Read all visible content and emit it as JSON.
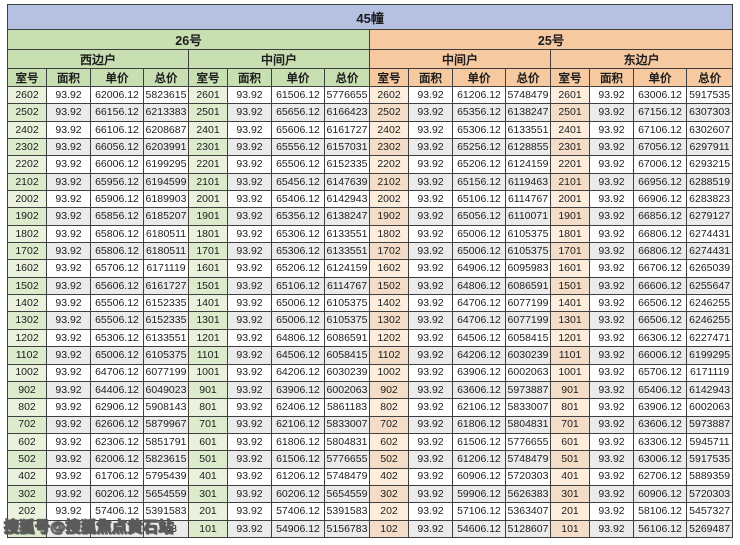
{
  "title": "45幢",
  "watermark": "搜狐号@搜狐焦点黄石站",
  "columns": [
    "室号",
    "面积",
    "单价",
    "总价"
  ],
  "colors": {
    "title_bar": "#b6c0e0",
    "building_26": "#c8dfb2",
    "building_25": "#f7c9a1"
  },
  "buildings": [
    {
      "name": "26号",
      "wings": [
        {
          "name": "西边户",
          "rows": [
            [
              "2602",
              "93.92",
              "62006.12",
              "5823615"
            ],
            [
              "2502",
              "93.92",
              "66156.12",
              "6213383"
            ],
            [
              "2402",
              "93.92",
              "66106.12",
              "6208687"
            ],
            [
              "2302",
              "93.92",
              "66056.12",
              "6203991"
            ],
            [
              "2202",
              "93.92",
              "66006.12",
              "6199295"
            ],
            [
              "2102",
              "93.92",
              "65956.12",
              "6194599"
            ],
            [
              "2002",
              "93.92",
              "65906.12",
              "6189903"
            ],
            [
              "1902",
              "93.92",
              "65856.12",
              "6185207"
            ],
            [
              "1802",
              "93.92",
              "65806.12",
              "6180511"
            ],
            [
              "1702",
              "93.92",
              "65806.12",
              "6180511"
            ],
            [
              "1602",
              "93.92",
              "65706.12",
              "6171119"
            ],
            [
              "1502",
              "93.92",
              "65606.12",
              "6161727"
            ],
            [
              "1402",
              "93.92",
              "65506.12",
              "6152335"
            ],
            [
              "1302",
              "93.92",
              "65506.12",
              "6152335"
            ],
            [
              "1202",
              "93.92",
              "65306.12",
              "6133551"
            ],
            [
              "1102",
              "93.92",
              "65006.12",
              "6105375"
            ],
            [
              "1002",
              "93.92",
              "64706.12",
              "6077199"
            ],
            [
              "902",
              "93.92",
              "64406.12",
              "6049023"
            ],
            [
              "802",
              "93.92",
              "62906.12",
              "5908143"
            ],
            [
              "702",
              "93.92",
              "62606.12",
              "5879967"
            ],
            [
              "602",
              "93.92",
              "62306.12",
              "5851791"
            ],
            [
              "502",
              "93.92",
              "62006.12",
              "5823615"
            ],
            [
              "402",
              "93.92",
              "61706.12",
              "5795439"
            ],
            [
              "302",
              "93.92",
              "60206.12",
              "5654559"
            ],
            [
              "202",
              "93.92",
              "57406.12",
              "5391583"
            ],
            [
              "",
              "",
              "",
              "743"
            ]
          ]
        },
        {
          "name": "中间户",
          "rows": [
            [
              "2601",
              "93.92",
              "61506.12",
              "5776655"
            ],
            [
              "2501",
              "93.92",
              "65656.12",
              "6166423"
            ],
            [
              "2401",
              "93.92",
              "65606.12",
              "6161727"
            ],
            [
              "2301",
              "93.92",
              "65556.12",
              "6157031"
            ],
            [
              "2201",
              "93.92",
              "65506.12",
              "6152335"
            ],
            [
              "2101",
              "93.92",
              "65456.12",
              "6147639"
            ],
            [
              "2001",
              "93.92",
              "65406.12",
              "6142943"
            ],
            [
              "1901",
              "93.92",
              "65356.12",
              "6138247"
            ],
            [
              "1801",
              "93.92",
              "65306.12",
              "6133551"
            ],
            [
              "1701",
              "93.92",
              "65306.12",
              "6133551"
            ],
            [
              "1601",
              "93.92",
              "65206.12",
              "6124159"
            ],
            [
              "1501",
              "93.92",
              "65106.12",
              "6114767"
            ],
            [
              "1401",
              "93.92",
              "65006.12",
              "6105375"
            ],
            [
              "1301",
              "93.92",
              "65006.12",
              "6105375"
            ],
            [
              "1201",
              "93.92",
              "64806.12",
              "6086591"
            ],
            [
              "1101",
              "93.92",
              "64506.12",
              "6058415"
            ],
            [
              "1001",
              "93.92",
              "64206.12",
              "6030239"
            ],
            [
              "901",
              "93.92",
              "63906.12",
              "6002063"
            ],
            [
              "801",
              "93.92",
              "62406.12",
              "5861183"
            ],
            [
              "701",
              "93.92",
              "62106.12",
              "5833007"
            ],
            [
              "601",
              "93.92",
              "61806.12",
              "5804831"
            ],
            [
              "501",
              "93.92",
              "61506.12",
              "5776655"
            ],
            [
              "401",
              "93.92",
              "61206.12",
              "5748479"
            ],
            [
              "301",
              "93.92",
              "60206.12",
              "5654559"
            ],
            [
              "201",
              "93.92",
              "57406.12",
              "5391583"
            ],
            [
              "101",
              "93.92",
              "54906.12",
              "5156783"
            ]
          ]
        }
      ]
    },
    {
      "name": "25号",
      "wings": [
        {
          "name": "中间户",
          "rows": [
            [
              "2602",
              "93.92",
              "61206.12",
              "5748479"
            ],
            [
              "2502",
              "93.92",
              "65356.12",
              "6138247"
            ],
            [
              "2402",
              "93.92",
              "65306.12",
              "6133551"
            ],
            [
              "2302",
              "93.92",
              "65256.12",
              "6128855"
            ],
            [
              "2202",
              "93.92",
              "65206.12",
              "6124159"
            ],
            [
              "2102",
              "93.92",
              "65156.12",
              "6119463"
            ],
            [
              "2002",
              "93.92",
              "65106.12",
              "6114767"
            ],
            [
              "1902",
              "93.92",
              "65056.12",
              "6110071"
            ],
            [
              "1802",
              "93.92",
              "65006.12",
              "6105375"
            ],
            [
              "1702",
              "93.92",
              "65006.12",
              "6105375"
            ],
            [
              "1602",
              "93.92",
              "64906.12",
              "6095983"
            ],
            [
              "1502",
              "93.92",
              "64806.12",
              "6086591"
            ],
            [
              "1402",
              "93.92",
              "64706.12",
              "6077199"
            ],
            [
              "1302",
              "93.92",
              "64706.12",
              "6077199"
            ],
            [
              "1202",
              "93.92",
              "64506.12",
              "6058415"
            ],
            [
              "1102",
              "93.92",
              "64206.12",
              "6030239"
            ],
            [
              "1002",
              "93.92",
              "63906.12",
              "6002063"
            ],
            [
              "902",
              "93.92",
              "63606.12",
              "5973887"
            ],
            [
              "802",
              "93.92",
              "62106.12",
              "5833007"
            ],
            [
              "702",
              "93.92",
              "61806.12",
              "5804831"
            ],
            [
              "602",
              "93.92",
              "61506.12",
              "5776655"
            ],
            [
              "502",
              "93.92",
              "61206.12",
              "5748479"
            ],
            [
              "402",
              "93.92",
              "60906.12",
              "5720303"
            ],
            [
              "302",
              "93.92",
              "59906.12",
              "5626383"
            ],
            [
              "202",
              "93.92",
              "57106.12",
              "5363407"
            ],
            [
              "102",
              "93.92",
              "54606.12",
              "5128607"
            ]
          ]
        },
        {
          "name": "东边户",
          "rows": [
            [
              "2601",
              "93.92",
              "63006.12",
              "5917535"
            ],
            [
              "2501",
              "93.92",
              "67156.12",
              "6307303"
            ],
            [
              "2401",
              "93.92",
              "67106.12",
              "6302607"
            ],
            [
              "2301",
              "93.92",
              "67056.12",
              "6297911"
            ],
            [
              "2201",
              "93.92",
              "67006.12",
              "6293215"
            ],
            [
              "2101",
              "93.92",
              "66956.12",
              "6288519"
            ],
            [
              "2001",
              "93.92",
              "66906.12",
              "6283823"
            ],
            [
              "1901",
              "93.92",
              "66856.12",
              "6279127"
            ],
            [
              "1801",
              "93.92",
              "66806.12",
              "6274431"
            ],
            [
              "1701",
              "93.92",
              "66806.12",
              "6274431"
            ],
            [
              "1601",
              "93.92",
              "66706.12",
              "6265039"
            ],
            [
              "1501",
              "93.92",
              "66606.12",
              "6255647"
            ],
            [
              "1401",
              "93.92",
              "66506.12",
              "6246255"
            ],
            [
              "1301",
              "93.92",
              "66506.12",
              "6246255"
            ],
            [
              "1201",
              "93.92",
              "66306.12",
              "6227471"
            ],
            [
              "1101",
              "93.92",
              "66006.12",
              "6199295"
            ],
            [
              "1001",
              "93.92",
              "65706.12",
              "6171119"
            ],
            [
              "901",
              "93.92",
              "65406.12",
              "6142943"
            ],
            [
              "801",
              "93.92",
              "63906.12",
              "6002063"
            ],
            [
              "701",
              "93.92",
              "63606.12",
              "5973887"
            ],
            [
              "601",
              "93.92",
              "63306.12",
              "5945711"
            ],
            [
              "501",
              "93.92",
              "63006.12",
              "5917535"
            ],
            [
              "401",
              "93.92",
              "62706.12",
              "5889359"
            ],
            [
              "301",
              "93.92",
              "60906.12",
              "5720303"
            ],
            [
              "201",
              "93.92",
              "58106.12",
              "5457327"
            ],
            [
              "101",
              "93.92",
              "56106.12",
              "5269487"
            ]
          ]
        }
      ]
    }
  ]
}
